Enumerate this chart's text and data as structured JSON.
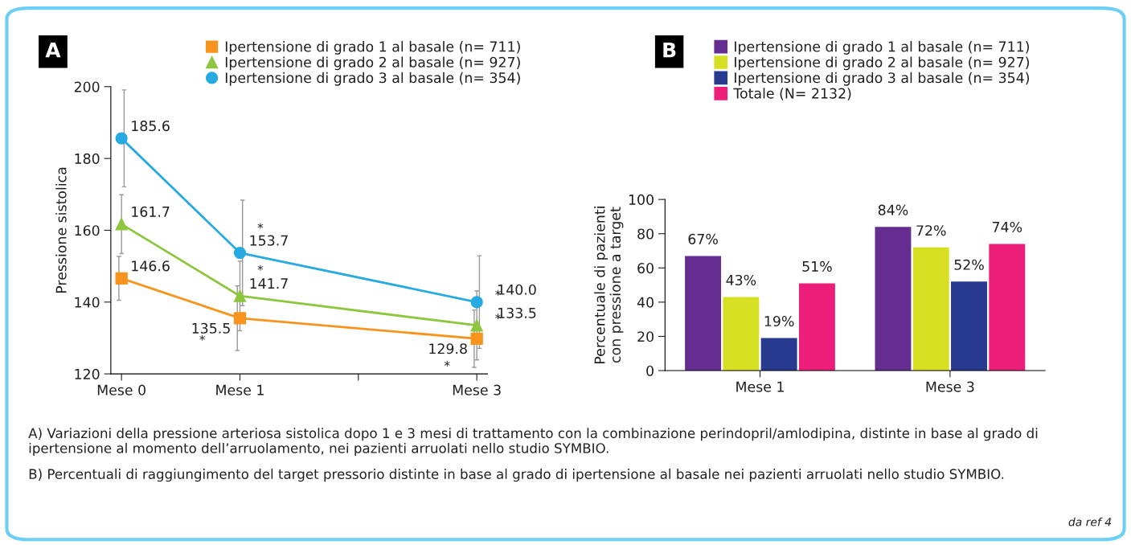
{
  "chart_data": [
    {
      "type": "line",
      "title": "A",
      "ylabel": "Pressione sistolica",
      "ylim": [
        120,
        200
      ],
      "yticks": [
        120,
        140,
        160,
        180,
        200
      ],
      "categories": [
        "Mese 0",
        "Mese 1",
        null,
        "Mese 3"
      ],
      "legend": "top right",
      "grid": false,
      "series": [
        {
          "name": "Ipertensione di grado 1 al basale (n= 711)",
          "color": "#f7941d",
          "marker": "square",
          "values": [
            146.6,
            135.5,
            null,
            129.8
          ],
          "errors": [
            6.1,
            9,
            null,
            8
          ],
          "value_labels": [
            "146.6",
            "135.5",
            null,
            "129.8"
          ]
        },
        {
          "name": "Ipertensione di grado 2 al basale (n= 927)",
          "color": "#8dc63f",
          "marker": "triangle",
          "values": [
            161.7,
            141.7,
            null,
            133.5
          ],
          "errors": [
            8.2,
            9.7,
            null,
            9.6
          ],
          "value_labels": [
            "161.7",
            "141.7",
            null,
            "133.5"
          ]
        },
        {
          "name": "Ipertensione di grado 3 al basale (n= 354)",
          "color": "#27aae1",
          "marker": "circle",
          "values": [
            185.6,
            153.7,
            null,
            140.0
          ],
          "errors": [
            13.5,
            14.7,
            null,
            12.9
          ],
          "value_labels": [
            "185.6",
            "153.7",
            null,
            "140.0"
          ]
        }
      ],
      "annotations": [
        "*",
        "*",
        "*",
        "*",
        "*",
        "*"
      ]
    },
    {
      "type": "bar",
      "title": "B",
      "ylabel": "Percentuale di pazienti\ncon pressione a target",
      "categories": [
        "Mese 1",
        "Mese 3"
      ],
      "ylim": [
        0,
        100
      ],
      "yticks": [
        0,
        20,
        40,
        60,
        80,
        100
      ],
      "legend": "top",
      "grid": false,
      "series": [
        {
          "name": "Ipertensione di grado 1 al basale (n= 711)",
          "color": "#662d91",
          "values": [
            67,
            84
          ],
          "value_labels": [
            "67%",
            "84%"
          ]
        },
        {
          "name": "Ipertensione di grado 2 al basale (n= 927)",
          "color": "#d7df23",
          "values": [
            43,
            72
          ],
          "value_labels": [
            "43%",
            "72%"
          ]
        },
        {
          "name": "Ipertensione di grado 3 al basale (n= 354)",
          "color": "#283a90",
          "values": [
            19,
            52
          ],
          "value_labels": [
            "19%",
            "52%"
          ]
        },
        {
          "name": "Totale (N= 2132)",
          "color": "#ed1e79",
          "values": [
            51,
            74
          ],
          "value_labels": [
            "51%",
            "74%"
          ]
        }
      ],
      "annotations": [
        "A) Variazioni della pressione arteriosa sistolica dopo 1 e 3 mesi di trattamento con la combinazione perindopril/amlodipina, distinte in base al grado di ipertensione al momento dell’arruolamento, nei pazienti arruolati nello studio SYMBIO.",
        "B) Percentuali di raggiungimento del target pressorio distinte in base al grado di ipertensione al basale nei pazienti arruolati nello studio SYMBIO.",
        "da ref 4"
      ]
    }
  ]
}
